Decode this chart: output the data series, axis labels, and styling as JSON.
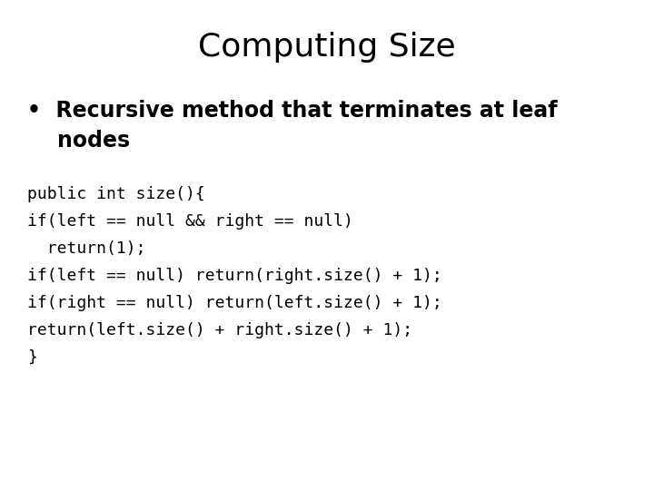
{
  "title": "Computing Size",
  "bullet_line1": "•  Recursive method that terminates at leaf",
  "bullet_line2": "    nodes",
  "code_lines": [
    "public int size(){",
    "if(left == null && right == null)",
    "  return(1);",
    "if(left == null) return(right.size() + 1);",
    "if(right == null) return(left.size() + 1);",
    "return(left.size() + right.size() + 1);",
    "}"
  ],
  "background_color": "#ffffff",
  "text_color": "#000000",
  "title_fontsize": 26,
  "bullet_fontsize": 17,
  "code_fontsize": 13
}
